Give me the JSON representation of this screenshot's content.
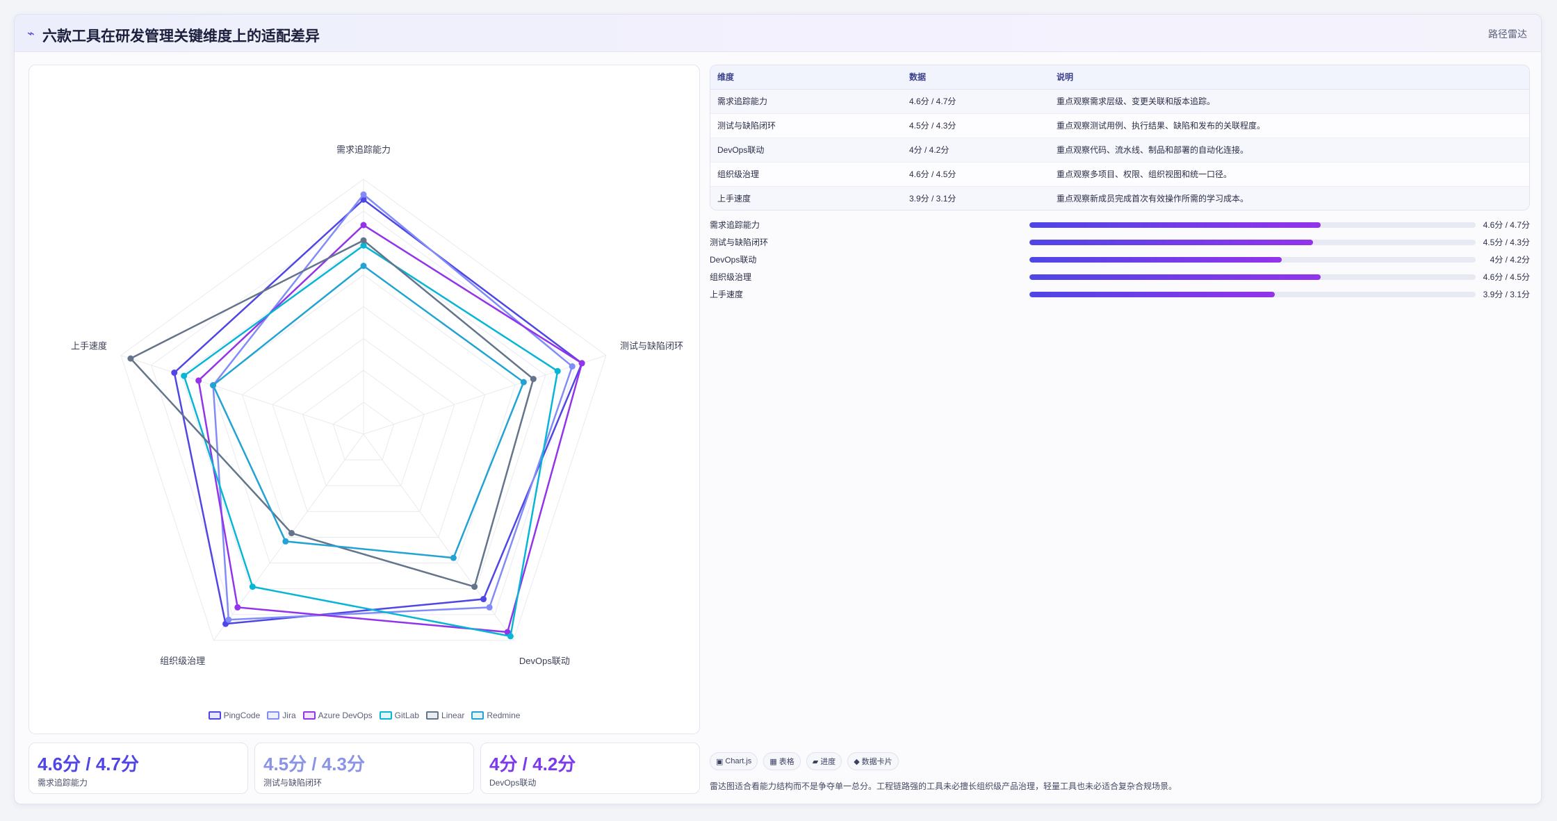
{
  "header": {
    "icon": "⌁",
    "title": "六款工具在研发管理关键维度上的适配差异",
    "tag": "路径雷达"
  },
  "chart_data": {
    "type": "radar",
    "axes": [
      "需求追踪能力",
      "测试与缺陷闭环",
      "DevOps联动",
      "组织级治理",
      "上手速度"
    ],
    "range": [
      0,
      5
    ],
    "series": [
      {
        "name": "PingCode",
        "color": "#4f46e5",
        "values": [
          4.6,
          4.5,
          4.0,
          4.6,
          3.9
        ]
      },
      {
        "name": "Jira",
        "color": "#818cf8",
        "values": [
          4.7,
          4.3,
          4.2,
          4.5,
          3.1
        ]
      },
      {
        "name": "Azure DevOps",
        "color": "#9333ea",
        "values": [
          4.1,
          4.5,
          4.8,
          4.2,
          3.4
        ]
      },
      {
        "name": "GitLab",
        "color": "#06b6d4",
        "values": [
          3.7,
          4.0,
          4.9,
          3.7,
          3.7
        ]
      },
      {
        "name": "Linear",
        "color": "#64748b",
        "values": [
          3.8,
          3.5,
          3.7,
          2.4,
          4.8
        ]
      },
      {
        "name": "Redmine",
        "color": "#22a3d4",
        "values": [
          3.3,
          3.3,
          3.0,
          2.6,
          3.1
        ]
      }
    ]
  },
  "kpis": [
    {
      "value": "4.6分 / 4.7分",
      "label": "需求追踪能力",
      "color": "#4f46e5"
    },
    {
      "value": "4.5分 / 4.3分",
      "label": "测试与缺陷闭环",
      "color": "#8b93e8"
    },
    {
      "value": "4分 / 4.2分",
      "label": "DevOps联动",
      "color": "#7c3aed"
    }
  ],
  "table": {
    "headers": [
      "维度",
      "数据",
      "说明"
    ],
    "rows": [
      [
        "需求追踪能力",
        "4.6分 / 4.7分",
        "重点观察需求层级、变更关联和版本追踪。"
      ],
      [
        "测试与缺陷闭环",
        "4.5分 / 4.3分",
        "重点观察测试用例、执行结果、缺陷和发布的关联程度。"
      ],
      [
        "DevOps联动",
        "4分 / 4.2分",
        "重点观察代码、流水线、制品和部署的自动化连接。"
      ],
      [
        "组织级治理",
        "4.6分 / 4.5分",
        "重点观察多项目、权限、组织视图和统一口径。"
      ],
      [
        "上手速度",
        "3.9分 / 3.1分",
        "重点观察新成员完成首次有效操作所需的学习成本。"
      ]
    ]
  },
  "bars": [
    {
      "label": "需求追踪能力",
      "value": "4.6分 / 4.7分",
      "fraction": 0.653
    },
    {
      "label": "测试与缺陷闭环",
      "value": "4.5分 / 4.3分",
      "fraction": 0.635
    },
    {
      "label": "DevOps联动",
      "value": "4分 / 4.2分",
      "fraction": 0.565
    },
    {
      "label": "组织级治理",
      "value": "4.6分 / 4.5分",
      "fraction": 0.653
    },
    {
      "label": "上手速度",
      "value": "3.9分 / 3.1分",
      "fraction": 0.55
    }
  ],
  "chips": [
    {
      "icon": "chart-icon",
      "glyph": "▣",
      "label": "Chart.js"
    },
    {
      "icon": "table-icon",
      "glyph": "▦",
      "label": "表格"
    },
    {
      "icon": "progress-icon",
      "glyph": "▰",
      "label": "进度"
    },
    {
      "icon": "card-icon",
      "glyph": "◆",
      "label": "数据卡片"
    }
  ],
  "note": "雷达图适合看能力结构而不是争夺单一总分。工程链路强的工具未必擅长组织级产品治理，轻量工具也未必适合复杂合规场景。"
}
